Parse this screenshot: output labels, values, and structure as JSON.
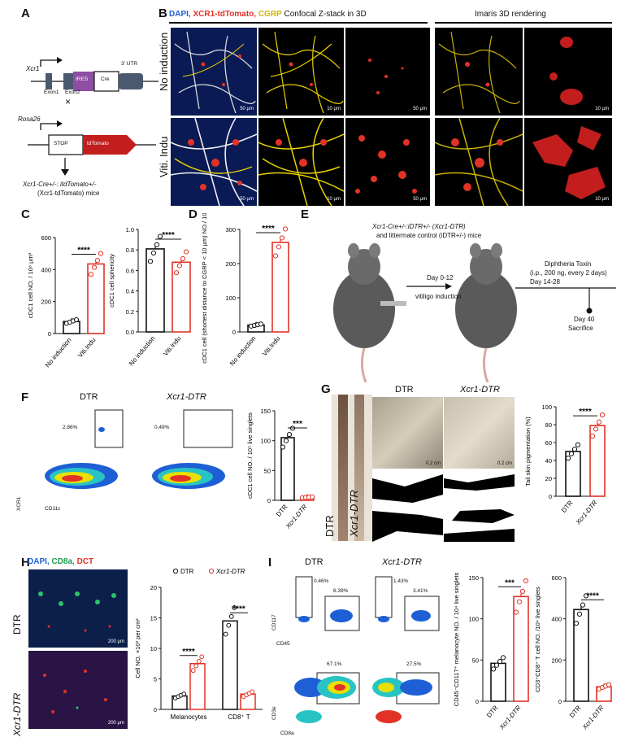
{
  "panels": {
    "A": "A",
    "B": "B",
    "C": "C",
    "D": "D",
    "E": "E",
    "F": "F",
    "G": "G",
    "H": "H",
    "I": "I"
  },
  "colors": {
    "red": "#e23227",
    "black": "#111111",
    "purple": "#8e4ea3",
    "blue_gray": "#4a5870",
    "tomato": "#c21e1e"
  },
  "panelA": {
    "gene1": "Xcr1",
    "exon1": "Exon1",
    "exon2": "Exon2",
    "ires": "IRES",
    "cre": "Cre",
    "utr": "3' UTR",
    "cross": "×",
    "gene2": "Rosa26",
    "stop": "STOP",
    "tdtomato": "tdTomato",
    "mice_line1": "Xcr1-Cre+/-: itdTomato+/-",
    "mice_line2": "(Xcr1-tdTomato) mice"
  },
  "panelB": {
    "legend_dapi": "DAPI,",
    "legend_xcr1": "XCR1-tdTomato,",
    "legend_cgrp": "CGRP",
    "legend_confocal": "Confocal Z-stack in 3D",
    "imaris": "Imaris 3D rendering",
    "row1": "No induction",
    "row2": "Viti. Indu",
    "sb50": "50 µm",
    "sb10": "10 µm"
  },
  "panelC": {
    "left": {
      "ylabel": "cDC1 cell NO. / 10⁸ µm³",
      "ymax": 600,
      "ticks": [
        "0",
        "200",
        "400",
        "600"
      ],
      "categories": [
        "No induction",
        "Viti.Indu"
      ],
      "means": [
        75,
        435
      ],
      "sig": "****"
    },
    "right": {
      "ylabel": "cDC1 cell sphericity",
      "ymax": 1.0,
      "ticks": [
        "0.0",
        "0.2",
        "0.4",
        "0.6",
        "0.8",
        "1.0"
      ],
      "categories": [
        "No induction",
        "Viti.Indu"
      ],
      "means": [
        0.81,
        0.68
      ],
      "sig": "****"
    }
  },
  "panelD": {
    "ylabel": "cDC1 cell (shortest distance to CGRP < 10 µm) NO./ 10⁸ µm³",
    "ymax": 300,
    "ticks": [
      "0",
      "100",
      "200",
      "300"
    ],
    "categories": [
      "No induction",
      "Viti.Indu"
    ],
    "means": [
      20,
      262
    ],
    "sig": "****"
  },
  "panelE": {
    "title_line1": "Xcr1-Cre+/-:iDTR+/- (Xcr1-DTR)",
    "title_line2": "and littermate control (iDTR+/-) mice",
    "step1_line1": "Day 0-12",
    "step1_line2": "vitiligo induction",
    "dt_line1": "Diphtheria Toxin",
    "dt_line2": "(i.p., 200 ng, every 2 days)",
    "dt_line3": "Day 14-28",
    "end_line1": "Day 40",
    "end_line2": "Sacrifice"
  },
  "panelF": {
    "dtr": "DTR",
    "xcr1dtr": "Xcr1-DTR",
    "pct1": "2.86%",
    "pct2": "0.49%",
    "xaxis": "CD11c",
    "yaxis": "XCR1",
    "bar": {
      "ylabel": "cDC1 cell NO. / 10⁵ live singlets",
      "ymax": 150,
      "ticks": [
        "0",
        "50",
        "100",
        "150"
      ],
      "categories": [
        "DTR",
        "Xcr1-DTR"
      ],
      "means": [
        105,
        5
      ],
      "sig": "***"
    }
  },
  "panelG": {
    "dtr": "DTR",
    "xcr1dtr": "Xcr1-DTR",
    "tail_dtr": "DTR",
    "tail_xcr1": "Xcr1-DTR",
    "sb": "0.2 cm",
    "bar": {
      "ylabel": "Tail skin pigmentation (%)",
      "ymax": 100,
      "ticks": [
        "0",
        "20",
        "40",
        "60",
        "80",
        "100"
      ],
      "categories": [
        "DTR",
        "Xcr1-DTR"
      ],
      "means": [
        50,
        79
      ],
      "sig": "****"
    }
  },
  "panelH": {
    "legend_dapi": "DAPI,",
    "legend_cd8": "CD8a,",
    "legend_dct": "DCT",
    "row1": "DTR",
    "row2": "Xcr1-DTR",
    "sb": "200 µm",
    "bar": {
      "ylabel": "Cell NO. ×10³ per cm²",
      "ymax": 20,
      "ticks": [
        "0",
        "5",
        "10",
        "15",
        "20"
      ],
      "groups": [
        "Melanocytes",
        "CD8⁺ T"
      ],
      "legend": [
        "DTR",
        "Xcr1-DTR"
      ],
      "dtr": [
        2.2,
        14.5
      ],
      "xcr1": [
        7.5,
        2.5
      ],
      "sig": [
        "****",
        "****"
      ]
    }
  },
  "panelI": {
    "dtr": "DTR",
    "xcr1dtr": "Xcr1-DTR",
    "p1": "0.46%",
    "p2": "6.39%",
    "p3": "1.43%",
    "p4": "3.41%",
    "p5": "67.1%",
    "p6": "27.5%",
    "y_top": "CD117",
    "x_top": "CD45",
    "y_bot": "CD3e",
    "x_bot": "CD8a",
    "bar1": {
      "ylabel": "CD45⁻CD117⁺ melanocyte NO. / 10⁴ live singlets",
      "ymax": 150,
      "ticks": [
        "0",
        "50",
        "100",
        "150"
      ],
      "categories": [
        "DTR",
        "Xcr1-DTR"
      ],
      "means": [
        46,
        127
      ],
      "sig": "***"
    },
    "bar2": {
      "ylabel": "CD3⁺CD8⁺ T cell NO. /10⁴ live singlets",
      "ymax": 600,
      "ticks": [
        "0",
        "200",
        "400",
        "600"
      ],
      "categories": [
        "DTR",
        "Xcr1-DTR"
      ],
      "means": [
        445,
        70
      ],
      "sig": "****"
    }
  }
}
